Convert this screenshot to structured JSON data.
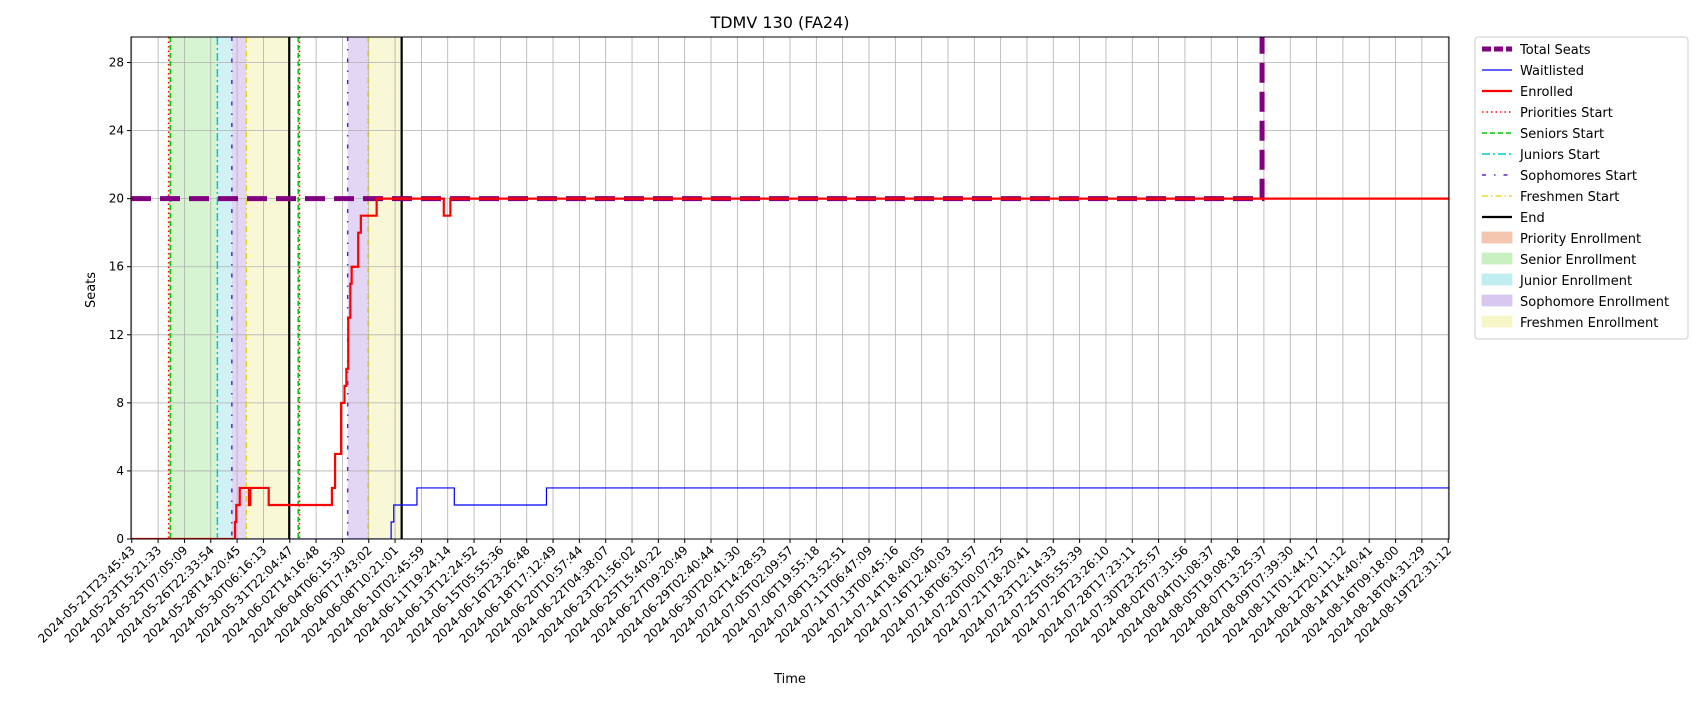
{
  "chart_data": {
    "type": "line",
    "title": "TDMV 130 (FA24)",
    "xlabel": "Time",
    "ylabel": "Seats",
    "ylim": [
      0,
      29.5
    ],
    "yticks": [
      0,
      4,
      8,
      12,
      16,
      20,
      24,
      28
    ],
    "grid": true,
    "legend_position": "outside-right",
    "x_tick_labels": [
      "2024-05-21T23:45:43",
      "2024-05-23T15:21:33",
      "2024-05-25T07:05:09",
      "2024-05-26T22:33:54",
      "2024-05-28T14:20:45",
      "2024-05-30T06:16:13",
      "2024-05-31T22:04:47",
      "2024-06-02T14:16:48",
      "2024-06-04T06:15:30",
      "2024-06-06T17:43:02",
      "2024-06-08T10:21:01",
      "2024-06-10T02:45:59",
      "2024-06-11T19:24:14",
      "2024-06-13T12:24:52",
      "2024-06-15T05:55:36",
      "2024-06-16T23:26:48",
      "2024-06-18T17:12:49",
      "2024-06-20T10:57:44",
      "2024-06-22T04:38:07",
      "2024-06-23T21:56:02",
      "2024-06-25T15:40:22",
      "2024-06-27T09:20:49",
      "2024-06-29T02:40:44",
      "2024-06-30T20:41:30",
      "2024-07-02T14:28:53",
      "2024-07-05T02:09:57",
      "2024-07-06T19:55:18",
      "2024-07-08T13:52:51",
      "2024-07-11T06:47:09",
      "2024-07-13T00:45:16",
      "2024-07-14T18:40:05",
      "2024-07-16T12:40:03",
      "2024-07-18T06:31:57",
      "2024-07-20T00:07:25",
      "2024-07-21T18:20:41",
      "2024-07-23T12:14:33",
      "2024-07-25T05:55:39",
      "2024-07-26T23:26:10",
      "2024-07-28T17:23:11",
      "2024-07-30T23:25:57",
      "2024-08-02T07:31:56",
      "2024-08-04T01:08:37",
      "2024-08-05T19:08:18",
      "2024-08-07T13:25:37",
      "2024-08-09T07:39:30",
      "2024-08-11T01:44:17",
      "2024-08-12T20:11:12",
      "2024-08-14T14:40:41",
      "2024-08-16T09:18:00",
      "2024-08-18T04:31:29",
      "2024-08-19T22:31:12"
    ],
    "x_range_index": [
      -0.03,
      50.03
    ],
    "series": [
      {
        "name": "Total Seats",
        "color": "#800080",
        "style": "dashed-thick",
        "points": [
          [
            -0.03,
            20
          ],
          [
            42.93,
            20
          ],
          [
            42.93,
            30
          ],
          [
            50.03,
            30
          ]
        ]
      },
      {
        "name": "Waitlisted",
        "color": "#0000ff",
        "style": "solid-thin",
        "points": [
          [
            -0.03,
            0
          ],
          [
            9.85,
            0
          ],
          [
            9.85,
            1
          ],
          [
            9.95,
            1
          ],
          [
            9.95,
            2
          ],
          [
            10.83,
            2
          ],
          [
            10.83,
            3
          ],
          [
            12.25,
            3
          ],
          [
            12.25,
            2
          ],
          [
            15.75,
            2
          ],
          [
            15.75,
            3
          ],
          [
            50.03,
            3
          ]
        ]
      },
      {
        "name": "Enrolled",
        "color": "#ff0000",
        "style": "solid",
        "points": [
          [
            -0.03,
            0
          ],
          [
            3.92,
            0
          ],
          [
            3.92,
            1
          ],
          [
            3.97,
            1
          ],
          [
            3.97,
            2
          ],
          [
            4.1,
            2
          ],
          [
            4.1,
            3
          ],
          [
            4.45,
            3
          ],
          [
            4.45,
            2
          ],
          [
            4.5,
            2
          ],
          [
            4.5,
            3
          ],
          [
            5.2,
            3
          ],
          [
            5.2,
            2
          ],
          [
            7.6,
            2
          ],
          [
            7.6,
            3
          ],
          [
            7.72,
            3
          ],
          [
            7.72,
            5
          ],
          [
            7.95,
            5
          ],
          [
            7.95,
            8
          ],
          [
            8.08,
            8
          ],
          [
            8.08,
            9
          ],
          [
            8.15,
            9
          ],
          [
            8.15,
            10
          ],
          [
            8.22,
            10
          ],
          [
            8.22,
            13
          ],
          [
            8.3,
            13
          ],
          [
            8.3,
            15
          ],
          [
            8.35,
            15
          ],
          [
            8.35,
            16
          ],
          [
            8.6,
            16
          ],
          [
            8.6,
            18
          ],
          [
            8.7,
            18
          ],
          [
            8.7,
            19
          ],
          [
            9.3,
            19
          ],
          [
            9.3,
            20
          ],
          [
            11.85,
            20
          ],
          [
            11.85,
            19
          ],
          [
            12.1,
            19
          ],
          [
            12.1,
            20
          ],
          [
            50.03,
            20
          ]
        ]
      }
    ],
    "vertical_markers": [
      {
        "name": "Priorities Start",
        "color": "#ff0000",
        "style": "dotted",
        "x": [
          1.4,
          6.37
        ]
      },
      {
        "name": "Seniors Start",
        "color": "#00cc00",
        "style": "dashed",
        "x": [
          1.47,
          6.32
        ]
      },
      {
        "name": "Juniors Start",
        "color": "#00cccc",
        "style": "dashdot",
        "x": [
          3.25
        ]
      },
      {
        "name": "Sophomores Start",
        "color": "#6020d0",
        "style": "sparse-dash",
        "x": [
          3.8,
          8.2
        ]
      },
      {
        "name": "Freshmen Start",
        "color": "#e0d000",
        "style": "dashdot-thin",
        "x": [
          4.35,
          8.97
        ]
      },
      {
        "name": "End",
        "color": "#000000",
        "style": "solid",
        "x": [
          5.98,
          10.25
        ]
      }
    ],
    "shaded_regions": [
      {
        "name": "Priority Enrollment",
        "color": "#f4c6b0",
        "spans": [
          [
            1.4,
            1.47
          ],
          [
            6.32,
            6.37
          ]
        ]
      },
      {
        "name": "Senior Enrollment",
        "color": "#c8f0c0",
        "spans": [
          [
            1.47,
            3.25
          ]
        ]
      },
      {
        "name": "Junior Enrollment",
        "color": "#c0eef0",
        "spans": [
          [
            3.25,
            3.8
          ]
        ]
      },
      {
        "name": "Sophomore Enrollment",
        "color": "#d8c8f0",
        "spans": [
          [
            3.8,
            4.35
          ],
          [
            8.2,
            8.97
          ]
        ]
      },
      {
        "name": "Freshmen Enrollment",
        "color": "#f6f6c8",
        "spans": [
          [
            4.35,
            5.98
          ],
          [
            8.97,
            10.25
          ]
        ]
      }
    ],
    "legend": [
      {
        "label": "Total Seats",
        "kind": "line",
        "color": "#800080",
        "style": "dashed-thick"
      },
      {
        "label": "Waitlisted",
        "kind": "line",
        "color": "#0000ff",
        "style": "solid-thin"
      },
      {
        "label": "Enrolled",
        "kind": "line",
        "color": "#ff0000",
        "style": "solid"
      },
      {
        "label": "Priorities Start",
        "kind": "line",
        "color": "#ff0000",
        "style": "dotted"
      },
      {
        "label": "Seniors Start",
        "kind": "line",
        "color": "#00cc00",
        "style": "dashed"
      },
      {
        "label": "Juniors Start",
        "kind": "line",
        "color": "#00cccc",
        "style": "dashdot"
      },
      {
        "label": "Sophomores Start",
        "kind": "line",
        "color": "#6020d0",
        "style": "sparse-dash"
      },
      {
        "label": "Freshmen Start",
        "kind": "line",
        "color": "#e0d000",
        "style": "dashdot-thin"
      },
      {
        "label": "End",
        "kind": "line",
        "color": "#000000",
        "style": "solid"
      },
      {
        "label": "Priority Enrollment",
        "kind": "patch",
        "color": "#f4c6b0"
      },
      {
        "label": "Senior Enrollment",
        "kind": "patch",
        "color": "#c8f0c0"
      },
      {
        "label": "Junior Enrollment",
        "kind": "patch",
        "color": "#c0eef0"
      },
      {
        "label": "Sophomore Enrollment",
        "kind": "patch",
        "color": "#d8c8f0"
      },
      {
        "label": "Freshmen Enrollment",
        "kind": "patch",
        "color": "#f6f6c8"
      }
    ]
  }
}
